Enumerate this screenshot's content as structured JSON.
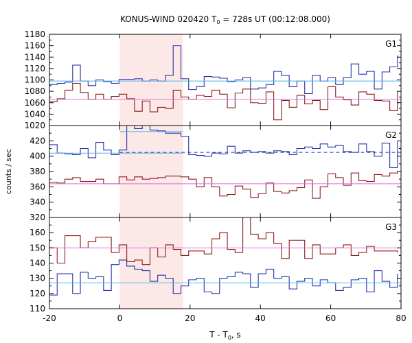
{
  "figure": {
    "title_prefix": "KONUS-WIND 020420 T",
    "title_sub": "0",
    "title_suffix": " = 728s UT (00:12:08.000)",
    "ylabel": "counts / sec",
    "xlabel_prefix": "T - T",
    "xlabel_sub": "0",
    "xlabel_suffix": ", s",
    "shaded_interval": [
      0,
      18
    ],
    "colors": {
      "shade": "#fde8e8",
      "series_high": "#2432a8",
      "series_low": "#8b1a1a",
      "bg_high": "#4fb4e6",
      "bg_low": "#e070d8"
    }
  },
  "chart_data": [
    {
      "type": "line",
      "panel_label": "G1",
      "title": "",
      "xlabel": "T - T0, s",
      "ylabel": "counts / sec",
      "xlim": [
        -20,
        80
      ],
      "ylim": [
        1020,
        1180
      ],
      "x_ticks": [
        "-20",
        "0",
        "20",
        "40",
        "60",
        "80"
      ],
      "y_ticks": [
        "1020",
        "1040",
        "1060",
        "1080",
        "1100",
        "1120",
        "1140",
        "1160",
        "1180"
      ],
      "bin_edges": [
        -20,
        -17.8,
        -15.6,
        -13.4,
        -11.2,
        -9,
        -6.8,
        -4.6,
        -2.4,
        -0.2,
        2,
        4.2,
        6.4,
        8.6,
        10.8,
        13,
        15.2,
        17.4,
        19.6,
        21.8,
        24,
        26.2,
        28.4,
        30.6,
        32.8,
        35,
        37.2,
        39.4,
        41.6,
        43.8,
        46,
        48.2,
        50.4,
        52.6,
        54.8,
        57,
        59.2,
        61.4,
        63.6,
        65.8,
        68,
        70.2,
        72.4,
        74.6,
        76.8,
        79
      ],
      "series": [
        {
          "name": "",
          "color_key": "series_high",
          "step": true,
          "values": [
            1092,
            1094,
            1096,
            1126,
            1098,
            1090,
            1100,
            1097,
            1094,
            1101,
            1101,
            1102,
            1098,
            1100,
            1098,
            1108,
            1160,
            1102,
            1083,
            1088,
            1106,
            1105,
            1103,
            1097,
            1100,
            1104,
            1084,
            1086,
            1092,
            1115,
            1108,
            1088,
            1098,
            1076,
            1108,
            1098,
            1104,
            1092,
            1104,
            1128,
            1110,
            1115,
            1084,
            1114,
            1123,
            1143
          ]
        },
        {
          "name": "",
          "color_key": "series_low",
          "step": true,
          "values": [
            1062,
            1067,
            1082,
            1094,
            1078,
            1066,
            1075,
            1066,
            1071,
            1075,
            1067,
            1045,
            1063,
            1044,
            1052,
            1050,
            1082,
            1070,
            1066,
            1073,
            1071,
            1082,
            1075,
            1051,
            1077,
            1084,
            1060,
            1059,
            1079,
            1030,
            1064,
            1052,
            1073,
            1058,
            1064,
            1048,
            1088,
            1070,
            1065,
            1056,
            1079,
            1075,
            1064,
            1063,
            1046,
            1080
          ]
        },
        {
          "name": "",
          "color_key": "bg_high",
          "step": false,
          "x": [
            -20,
            80
          ],
          "values": [
            1098,
            1098
          ]
        },
        {
          "name": "",
          "color_key": "bg_low",
          "step": false,
          "x": [
            -20,
            80
          ],
          "values": [
            1066,
            1066
          ]
        }
      ]
    },
    {
      "type": "line",
      "panel_label": "G2",
      "title": "",
      "xlabel": "T - T0, s",
      "ylabel": "counts / sec",
      "xlim": [
        -20,
        80
      ],
      "ylim": [
        320,
        440
      ],
      "x_ticks": [
        "-20",
        "0",
        "20",
        "40",
        "60",
        "80"
      ],
      "y_ticks": [
        "320",
        "340",
        "360",
        "380",
        "400",
        "420",
        "440"
      ],
      "bin_edges": [
        -20,
        -17.8,
        -15.6,
        -13.4,
        -11.2,
        -9,
        -6.8,
        -4.6,
        -2.4,
        -0.2,
        2,
        4.2,
        6.4,
        8.6,
        10.8,
        13,
        15.2,
        17.4,
        19.6,
        21.8,
        24,
        26.2,
        28.4,
        30.6,
        32.8,
        35,
        37.2,
        39.4,
        41.6,
        43.8,
        46,
        48.2,
        50.4,
        52.6,
        54.8,
        57,
        59.2,
        61.4,
        63.6,
        65.8,
        68,
        70.2,
        72.4,
        74.6,
        76.8,
        79
      ],
      "series": [
        {
          "name": "",
          "color_key": "series_high",
          "step": true,
          "values": [
            415,
            404,
            403,
            402,
            410,
            398,
            418,
            408,
            402,
            408,
            441,
            436,
            441,
            434,
            433,
            430,
            430,
            426,
            402,
            401,
            400,
            404,
            403,
            413,
            404,
            407,
            405,
            406,
            404,
            407,
            406,
            402,
            410,
            412,
            410,
            416,
            412,
            414,
            406,
            405,
            416,
            406,
            400,
            417,
            385,
            419
          ]
        },
        {
          "name": "",
          "color_key": "series_low",
          "step": true,
          "values": [
            366,
            365,
            370,
            372,
            367,
            367,
            370,
            364,
            364,
            373,
            369,
            373,
            370,
            371,
            372,
            374,
            374,
            373,
            370,
            360,
            372,
            360,
            348,
            350,
            361,
            357,
            346,
            351,
            365,
            354,
            352,
            355,
            359,
            369,
            345,
            360,
            377,
            372,
            362,
            378,
            368,
            367,
            376,
            374,
            378,
            380
          ]
        },
        {
          "name": "",
          "color_key": "bg_high",
          "step": false,
          "x": [
            -20,
            18
          ],
          "values": [
            404,
            404
          ]
        },
        {
          "name": "",
          "color_key": "bg_high",
          "step": false,
          "x": [
            0,
            18
          ],
          "values": [
            432,
            432
          ]
        },
        {
          "name": "",
          "color_key": "bg_low",
          "step": false,
          "x": [
            -20,
            80
          ],
          "values": [
            364,
            364
          ]
        },
        {
          "name": "",
          "color_key": "series_high",
          "step": false,
          "dashed": true,
          "x": [
            0,
            80
          ],
          "values": [
            405,
            405
          ]
        }
      ]
    },
    {
      "type": "line",
      "panel_label": "G3",
      "title": "",
      "xlabel": "T - T0, s",
      "ylabel": "counts / sec",
      "xlim": [
        -20,
        80
      ],
      "ylim": [
        110,
        170
      ],
      "x_ticks": [
        "-20",
        "0",
        "20",
        "40",
        "60",
        "80"
      ],
      "y_ticks": [
        "110",
        "120",
        "130",
        "140",
        "150",
        "160",
        "170"
      ],
      "bin_edges": [
        -20,
        -17.8,
        -15.6,
        -13.4,
        -11.2,
        -9,
        -6.8,
        -4.6,
        -2.4,
        -0.2,
        2,
        4.2,
        6.4,
        8.6,
        10.8,
        13,
        15.2,
        17.4,
        19.6,
        21.8,
        24,
        26.2,
        28.4,
        30.6,
        32.8,
        35,
        37.2,
        39.4,
        41.6,
        43.8,
        46,
        48.2,
        50.4,
        52.6,
        54.8,
        57,
        59.2,
        61.4,
        63.6,
        65.8,
        68,
        70.2,
        72.4,
        74.6,
        76.8,
        79
      ],
      "series": [
        {
          "name": "",
          "color_key": "series_high",
          "step": true,
          "values": [
            119,
            133,
            133,
            120,
            134,
            130,
            131,
            122,
            139,
            142,
            138,
            136,
            135,
            128,
            132,
            130,
            120,
            125,
            129,
            130,
            121,
            120,
            130,
            131,
            134,
            133,
            124,
            133,
            136,
            130,
            131,
            123,
            128,
            130,
            125,
            129,
            127,
            122,
            124,
            129,
            130,
            121,
            135,
            128,
            124,
            133
          ]
        },
        {
          "name": "",
          "color_key": "series_low",
          "step": true,
          "values": [
            150,
            140,
            158,
            158,
            150,
            154,
            157,
            157,
            147,
            152,
            141,
            142,
            139,
            150,
            144,
            152,
            149,
            145,
            148,
            148,
            146,
            156,
            160,
            149,
            147,
            171,
            159,
            156,
            160,
            153,
            143,
            155,
            155,
            143,
            152,
            146,
            146,
            150,
            152,
            145,
            147,
            151,
            148,
            148,
            148,
            147
          ]
        },
        {
          "name": "",
          "color_key": "bg_high",
          "step": false,
          "x": [
            -20,
            80
          ],
          "values": [
            127,
            127
          ]
        },
        {
          "name": "",
          "color_key": "bg_low",
          "step": false,
          "x": [
            -20,
            80
          ],
          "values": [
            150,
            150
          ]
        }
      ]
    }
  ]
}
